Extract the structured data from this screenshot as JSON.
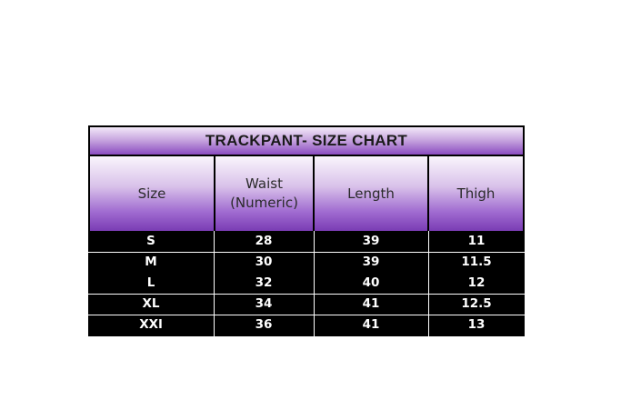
{
  "title": "TRACKPANT- SIZE CHART",
  "columns": [
    "Size",
    "Waist (Numeric)",
    "Length",
    "Thigh"
  ],
  "rows": [
    [
      "S",
      "28",
      "39",
      "11"
    ],
    [
      "M",
      "30",
      "39",
      "11.5"
    ],
    [
      "L",
      "32",
      "40",
      "12"
    ],
    [
      "XL",
      "34",
      "41",
      "12.5"
    ],
    [
      "XXl",
      "36",
      "41",
      "13"
    ]
  ],
  "colors": {
    "header_purple": "#7a3cb4",
    "body_background": "#000000",
    "body_text": "#ffffff"
  }
}
